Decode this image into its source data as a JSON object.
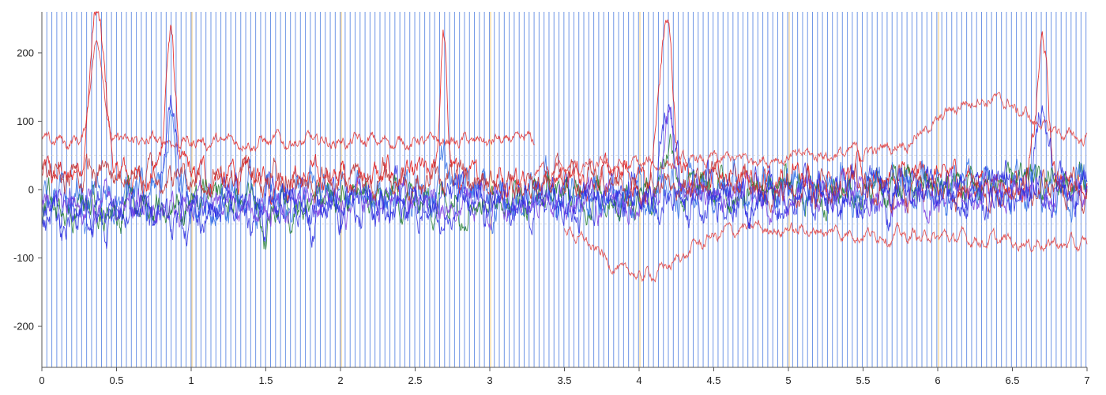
{
  "chart_data": {
    "type": "line",
    "title": "",
    "xlabel": "",
    "ylabel": "",
    "xlim": [
      0,
      7
    ],
    "ylim": [
      -260,
      260
    ],
    "x_ticks": [
      {
        "value": 0,
        "label": "0"
      },
      {
        "value": 0.5,
        "label": "0.5"
      },
      {
        "value": 1,
        "label": "1"
      },
      {
        "value": 1.5,
        "label": "1.5"
      },
      {
        "value": 2,
        "label": "2"
      },
      {
        "value": 2.5,
        "label": "2.5"
      },
      {
        "value": 3,
        "label": "3"
      },
      {
        "value": 3.5,
        "label": "3.5"
      },
      {
        "value": 4,
        "label": "4"
      },
      {
        "value": 4.5,
        "label": "4.5"
      },
      {
        "value": 5,
        "label": "5"
      },
      {
        "value": 5.5,
        "label": "5.5"
      },
      {
        "value": 6,
        "label": "6"
      },
      {
        "value": 6.5,
        "label": "6.5"
      },
      {
        "value": 7,
        "label": "7"
      }
    ],
    "y_ticks": [
      {
        "value": 200,
        "label": "200"
      },
      {
        "value": 100,
        "label": "100"
      },
      {
        "value": 0,
        "label": "0"
      },
      {
        "value": -100,
        "label": "-100"
      },
      {
        "value": -200,
        "label": "-200"
      }
    ],
    "grid": false,
    "legend": "none",
    "marker_spacing": 0.0333,
    "highlight_markers": [
      1,
      2,
      3,
      4,
      5,
      6
    ],
    "colors": {
      "marker": "#6f96e6",
      "highlight_marker": "#f2c87a",
      "axis": "#555555",
      "series_palette": [
        "#e01010",
        "#2a2ae0",
        "#1f7a2a",
        "#2f6fe6",
        "#7a3ae0",
        "#c03030"
      ]
    },
    "series": [
      {
        "color": "#e01010",
        "base": 18,
        "trend": -0.5,
        "noise": 25,
        "peaks": [
          {
            "x": 0.37,
            "h": 240,
            "w": 0.07
          },
          {
            "x": 0.86,
            "h": 200,
            "w": 0.05
          },
          {
            "x": 2.69,
            "h": 220,
            "w": 0.03
          },
          {
            "x": 4.18,
            "h": 230,
            "w": 0.06
          },
          {
            "x": 6.7,
            "h": 200,
            "w": 0.05
          }
        ]
      },
      {
        "color": "#e03030",
        "base": 70,
        "trend": 0,
        "noise": 12,
        "range": [
          0,
          3.3
        ],
        "peaks": [
          {
            "x": 0.37,
            "h": 150,
            "w": 0.06
          }
        ]
      },
      {
        "color": "#e04040",
        "base": 30,
        "trend": 12,
        "noise": 12,
        "range": [
          3.3,
          7
        ],
        "peaks": [
          {
            "x": 6.3,
            "h": 70,
            "w": 0.4
          }
        ]
      },
      {
        "color": "#e04040",
        "base": -40,
        "trend": -12,
        "noise": 12,
        "range": [
          3.5,
          7
        ],
        "peaks": [
          {
            "x": 4.0,
            "h": -80,
            "w": 0.4
          }
        ]
      },
      {
        "color": "#2a2ae0",
        "base": -12,
        "trend": 4,
        "noise": 35,
        "peaks": [
          {
            "x": 0.86,
            "h": 160,
            "w": 0.05
          },
          {
            "x": 4.2,
            "h": 130,
            "w": 0.06
          },
          {
            "x": 6.7,
            "h": 110,
            "w": 0.05
          }
        ]
      },
      {
        "color": "#1f7a2a",
        "base": -8,
        "trend": 5,
        "noise": 30,
        "peaks": [
          {
            "x": 1.5,
            "h": -60,
            "w": 0.03
          },
          {
            "x": 4.2,
            "h": 80,
            "w": 0.06
          }
        ]
      },
      {
        "color": "#2f6fe6",
        "base": -5,
        "trend": 4,
        "noise": 35,
        "peaks": [
          {
            "x": 0.86,
            "h": 120,
            "w": 0.05
          },
          {
            "x": 2.69,
            "h": 80,
            "w": 0.03
          }
        ]
      },
      {
        "color": "#7a3ae0",
        "base": -15,
        "trend": 3,
        "noise": 28,
        "peaks": [
          {
            "x": 4.2,
            "h": 100,
            "w": 0.06
          }
        ]
      },
      {
        "color": "#c03030",
        "base": 10,
        "trend": -4,
        "noise": 26,
        "peaks": []
      },
      {
        "color": "#2a2ae0",
        "base": -20,
        "trend": 6,
        "noise": 30,
        "peaks": []
      }
    ]
  }
}
